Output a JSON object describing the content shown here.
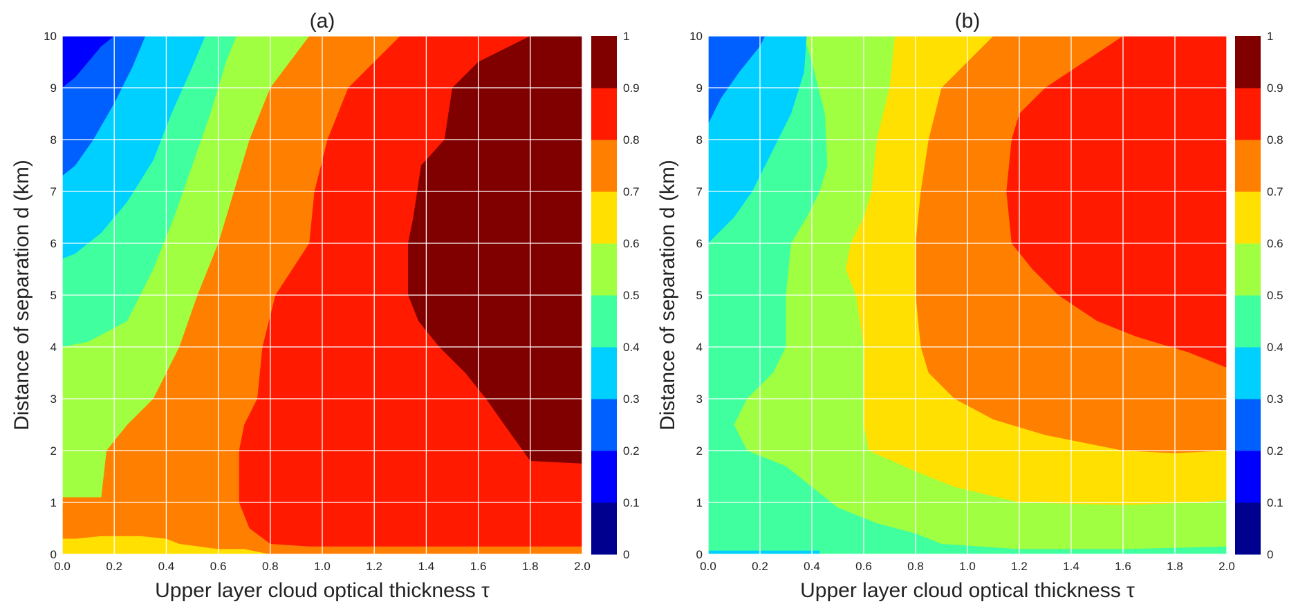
{
  "chart_data": [
    {
      "type": "heatmap",
      "title": "(a)",
      "xlabel": "Upper layer cloud optical thickness τ",
      "ylabel": "Distance of separation d (km)",
      "xlim": [
        0.0,
        2.0
      ],
      "ylim": [
        0,
        10
      ],
      "xticks": [
        "0.0",
        "0.2",
        "0.4",
        "0.6",
        "0.8",
        "1.0",
        "1.2",
        "1.4",
        "1.6",
        "1.8",
        "2.0"
      ],
      "yticks": [
        "0",
        "1",
        "2",
        "3",
        "4",
        "5",
        "6",
        "7",
        "8",
        "9",
        "10"
      ],
      "grid": true,
      "colorbar": {
        "range": [
          0,
          1
        ],
        "ticks": [
          "0",
          "0.1",
          "0.2",
          "0.3",
          "0.4",
          "0.5",
          "0.6",
          "0.7",
          "0.8",
          "0.9",
          "1"
        ],
        "level_colors": [
          "#00008f",
          "#0000ff",
          "#0060ff",
          "#00d0ff",
          "#40ff9f",
          "#a0ff40",
          "#ffe000",
          "#ff7f00",
          "#ff1a00",
          "#800000"
        ]
      },
      "regions": [
        {
          "level_range": [
            0.8,
            0.9
          ],
          "polygon": [
            [
              0.0,
              0.0
            ],
            [
              2.0,
              0.0
            ],
            [
              2.0,
              10.0
            ],
            [
              0.0,
              10.0
            ]
          ]
        },
        {
          "level_range": [
            0.7,
            0.8
          ],
          "polygon": [
            [
              0.0,
              0.0
            ],
            [
              2.0,
              0.0
            ],
            [
              2.0,
              0.15
            ],
            [
              1.3,
              0.15
            ],
            [
              0.95,
              0.15
            ],
            [
              0.8,
              0.2
            ],
            [
              0.72,
              0.5
            ],
            [
              0.68,
              1.0
            ],
            [
              0.68,
              2.0
            ],
            [
              0.7,
              2.5
            ],
            [
              0.75,
              3.0
            ],
            [
              0.77,
              4.0
            ],
            [
              0.82,
              5.0
            ],
            [
              0.95,
              6.0
            ],
            [
              0.97,
              7.0
            ],
            [
              1.02,
              8.0
            ],
            [
              1.1,
              9.0
            ],
            [
              1.3,
              10.0
            ],
            [
              0.0,
              10.0
            ]
          ]
        },
        {
          "level_range": [
            0.6,
            0.7
          ],
          "polygon": [
            [
              0.0,
              0.0
            ],
            [
              0.8,
              0.0
            ],
            [
              0.7,
              0.1
            ],
            [
              0.6,
              0.1
            ],
            [
              0.45,
              0.2
            ],
            [
              0.4,
              0.3
            ],
            [
              0.3,
              0.35
            ],
            [
              0.15,
              0.35
            ],
            [
              0.05,
              0.3
            ],
            [
              0.0,
              0.3
            ],
            [
              0.0,
              1.1
            ],
            [
              0.15,
              1.1
            ],
            [
              0.17,
              2.0
            ],
            [
              0.25,
              2.5
            ],
            [
              0.35,
              3.0
            ],
            [
              0.45,
              4.0
            ],
            [
              0.52,
              5.0
            ],
            [
              0.6,
              6.0
            ],
            [
              0.66,
              7.0
            ],
            [
              0.72,
              8.0
            ],
            [
              0.8,
              9.0
            ],
            [
              0.95,
              10.0
            ],
            [
              0.0,
              10.0
            ]
          ]
        },
        {
          "level_range": [
            0.5,
            0.6
          ],
          "polygon": [
            [
              0.0,
              1.1
            ],
            [
              0.15,
              1.1
            ],
            [
              0.17,
              2.0
            ],
            [
              0.25,
              2.5
            ],
            [
              0.35,
              3.0
            ],
            [
              0.45,
              4.0
            ],
            [
              0.52,
              5.0
            ],
            [
              0.6,
              6.0
            ],
            [
              0.66,
              7.0
            ],
            [
              0.72,
              8.0
            ],
            [
              0.8,
              9.0
            ],
            [
              0.95,
              10.0
            ],
            [
              0.0,
              10.0
            ]
          ]
        },
        {
          "level_range": [
            0.4,
            0.5
          ],
          "polygon": [
            [
              0.0,
              4.0
            ],
            [
              0.1,
              4.1
            ],
            [
              0.25,
              4.5
            ],
            [
              0.35,
              5.5
            ],
            [
              0.43,
              6.5
            ],
            [
              0.5,
              7.5
            ],
            [
              0.57,
              8.5
            ],
            [
              0.63,
              9.5
            ],
            [
              0.67,
              10.0
            ],
            [
              0.0,
              10.0
            ]
          ]
        },
        {
          "level_range": [
            0.3,
            0.4
          ],
          "polygon": [
            [
              0.0,
              5.7
            ],
            [
              0.05,
              5.8
            ],
            [
              0.15,
              6.2
            ],
            [
              0.25,
              6.8
            ],
            [
              0.35,
              7.6
            ],
            [
              0.42,
              8.5
            ],
            [
              0.5,
              9.4
            ],
            [
              0.55,
              10.0
            ],
            [
              0.0,
              10.0
            ]
          ]
        },
        {
          "level_range": [
            0.2,
            0.3
          ],
          "polygon": [
            [
              0.0,
              7.3
            ],
            [
              0.05,
              7.5
            ],
            [
              0.12,
              8.0
            ],
            [
              0.2,
              8.7
            ],
            [
              0.27,
              9.4
            ],
            [
              0.32,
              10.0
            ],
            [
              0.0,
              10.0
            ]
          ]
        },
        {
          "level_range": [
            0.1,
            0.2
          ],
          "polygon": [
            [
              0.0,
              9.0
            ],
            [
              0.05,
              9.2
            ],
            [
              0.1,
              9.5
            ],
            [
              0.15,
              9.8
            ],
            [
              0.2,
              10.0
            ],
            [
              0.0,
              10.0
            ]
          ]
        },
        {
          "level_range": [
            0.9,
            1.0
          ],
          "polygon": [
            [
              1.33,
              5.0
            ],
            [
              1.37,
              4.5
            ],
            [
              1.45,
              4.0
            ],
            [
              1.55,
              3.5
            ],
            [
              1.63,
              3.0
            ],
            [
              1.7,
              2.5
            ],
            [
              1.8,
              1.8
            ],
            [
              2.0,
              1.75
            ],
            [
              2.0,
              10.0
            ],
            [
              1.8,
              10.0
            ],
            [
              1.6,
              9.5
            ],
            [
              1.5,
              9.0
            ],
            [
              1.47,
              8.0
            ],
            [
              1.38,
              7.5
            ],
            [
              1.35,
              6.5
            ],
            [
              1.33,
              6.0
            ]
          ]
        }
      ]
    },
    {
      "type": "heatmap",
      "title": "(b)",
      "xlabel": "Upper layer cloud optical thickness τ",
      "ylabel": "Distance of separation d (km)",
      "xlim": [
        0.0,
        2.0
      ],
      "ylim": [
        0,
        10
      ],
      "xticks": [
        "0.0",
        "0.2",
        "0.4",
        "0.6",
        "0.8",
        "1.0",
        "1.2",
        "1.4",
        "1.6",
        "1.8",
        "2.0"
      ],
      "yticks": [
        "0",
        "1",
        "2",
        "3",
        "4",
        "5",
        "6",
        "7",
        "8",
        "9",
        "10"
      ],
      "grid": true,
      "colorbar": {
        "range": [
          0,
          1
        ],
        "ticks": [
          "0",
          "0.1",
          "0.2",
          "0.3",
          "0.4",
          "0.5",
          "0.6",
          "0.7",
          "0.8",
          "0.9",
          "1"
        ],
        "level_colors": [
          "#00008f",
          "#0000ff",
          "#0060ff",
          "#00d0ff",
          "#40ff9f",
          "#a0ff40",
          "#ffe000",
          "#ff7f00",
          "#ff1a00",
          "#800000"
        ]
      },
      "regions": [
        {
          "level_range": [
            0.4,
            0.5
          ],
          "polygon": [
            [
              0.0,
              0.0
            ],
            [
              2.0,
              0.0
            ],
            [
              2.0,
              10.0
            ],
            [
              0.0,
              10.0
            ]
          ]
        },
        {
          "level_range": [
            0.3,
            0.4
          ],
          "polygon": [
            [
              0.0,
              0.0
            ],
            [
              0.43,
              0.0
            ],
            [
              0.43,
              0.07
            ],
            [
              0.0,
              0.07
            ]
          ]
        },
        {
          "level_range": [
            0.5,
            0.6
          ],
          "polygon": [
            [
              0.1,
              2.5
            ],
            [
              0.15,
              2.0
            ],
            [
              0.3,
              1.7
            ],
            [
              0.4,
              1.3
            ],
            [
              0.5,
              0.9
            ],
            [
              0.65,
              0.6
            ],
            [
              0.8,
              0.4
            ],
            [
              0.9,
              0.2
            ],
            [
              1.2,
              0.1
            ],
            [
              1.6,
              0.1
            ],
            [
              2.0,
              0.15
            ],
            [
              2.0,
              10.0
            ],
            [
              0.37,
              10.0
            ],
            [
              0.4,
              9.5
            ],
            [
              0.45,
              8.5
            ],
            [
              0.46,
              7.5
            ],
            [
              0.43,
              7.0
            ],
            [
              0.38,
              6.5
            ],
            [
              0.32,
              6.0
            ],
            [
              0.3,
              5.0
            ],
            [
              0.3,
              4.0
            ],
            [
              0.25,
              3.5
            ],
            [
              0.15,
              3.0
            ]
          ]
        },
        {
          "level_range": [
            0.6,
            0.7
          ],
          "polygon": [
            [
              0.6,
              6.5
            ],
            [
              0.55,
              6.0
            ],
            [
              0.53,
              5.5
            ],
            [
              0.57,
              5.0
            ],
            [
              0.6,
              4.0
            ],
            [
              0.6,
              2.5
            ],
            [
              0.62,
              2.0
            ],
            [
              0.8,
              1.6
            ],
            [
              0.95,
              1.3
            ],
            [
              1.2,
              1.0
            ],
            [
              1.6,
              0.95
            ],
            [
              1.9,
              1.0
            ],
            [
              2.0,
              1.05
            ],
            [
              2.0,
              10.0
            ],
            [
              0.72,
              10.0
            ],
            [
              0.7,
              9.0
            ],
            [
              0.65,
              8.0
            ],
            [
              0.63,
              7.0
            ]
          ]
        },
        {
          "level_range": [
            0.7,
            0.8
          ],
          "polygon": [
            [
              0.8,
              6.0
            ],
            [
              0.8,
              5.0
            ],
            [
              0.82,
              4.0
            ],
            [
              0.85,
              3.5
            ],
            [
              0.95,
              3.0
            ],
            [
              1.1,
              2.6
            ],
            [
              1.3,
              2.3
            ],
            [
              1.6,
              2.0
            ],
            [
              1.8,
              1.95
            ],
            [
              2.0,
              2.0
            ],
            [
              2.0,
              10.0
            ],
            [
              1.1,
              10.0
            ],
            [
              1.0,
              9.5
            ],
            [
              0.9,
              9.0
            ],
            [
              0.85,
              8.0
            ],
            [
              0.82,
              7.0
            ]
          ]
        },
        {
          "level_range": [
            0.8,
            0.9
          ],
          "polygon": [
            [
              1.15,
              7.0
            ],
            [
              1.17,
              6.0
            ],
            [
              1.25,
              5.5
            ],
            [
              1.35,
              5.0
            ],
            [
              1.5,
              4.5
            ],
            [
              1.65,
              4.2
            ],
            [
              1.85,
              3.9
            ],
            [
              2.0,
              3.6
            ],
            [
              2.0,
              10.0
            ],
            [
              1.6,
              10.0
            ],
            [
              1.45,
              9.5
            ],
            [
              1.3,
              9.0
            ],
            [
              1.2,
              8.5
            ],
            [
              1.17,
              8.0
            ]
          ]
        },
        {
          "level_range": [
            0.2,
            0.3
          ],
          "polygon": [
            [
              0.0,
              8.3
            ],
            [
              0.05,
              8.8
            ],
            [
              0.12,
              9.3
            ],
            [
              0.2,
              9.8
            ],
            [
              0.22,
              10.0
            ],
            [
              0.0,
              10.0
            ]
          ]
        },
        {
          "level_range": [
            0.3,
            0.4
          ],
          "polygon": [
            [
              0.0,
              6.0
            ],
            [
              0.1,
              6.5
            ],
            [
              0.17,
              7.0
            ],
            [
              0.25,
              7.8
            ],
            [
              0.32,
              8.5
            ],
            [
              0.37,
              9.3
            ],
            [
              0.38,
              10.0
            ],
            [
              0.22,
              10.0
            ],
            [
              0.2,
              9.8
            ],
            [
              0.12,
              9.3
            ],
            [
              0.05,
              8.8
            ],
            [
              0.0,
              8.3
            ]
          ]
        }
      ]
    }
  ]
}
